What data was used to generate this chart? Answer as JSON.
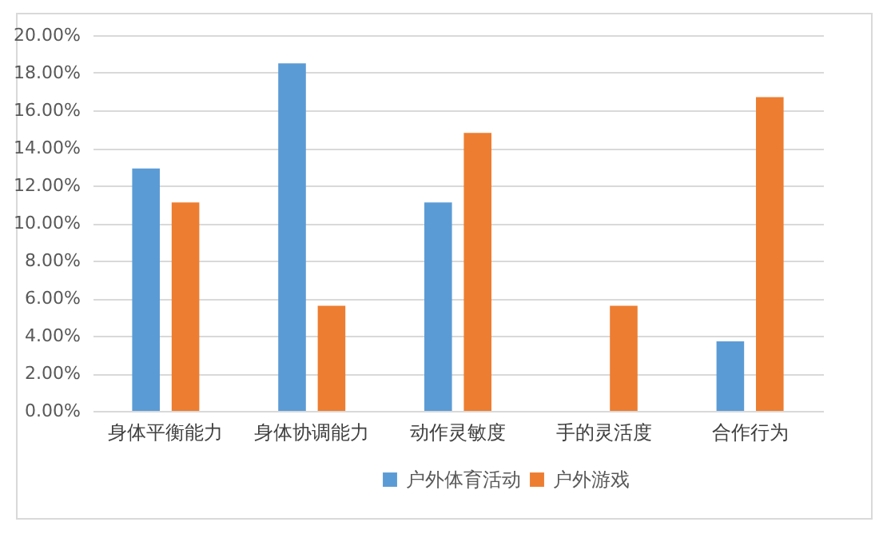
{
  "chart_data": {
    "type": "bar",
    "categories": [
      "身体平衡能力",
      "身体协调能力",
      "动作灵敏度",
      "手的灵活度",
      "合作行为"
    ],
    "series": [
      {
        "name": "户外体育活动",
        "color": "#5b9bd5",
        "values": [
          12.9,
          18.5,
          11.1,
          null,
          3.7
        ]
      },
      {
        "name": "户外游戏",
        "color": "#ed7d31",
        "values": [
          11.1,
          5.6,
          14.8,
          5.6,
          16.7
        ]
      }
    ],
    "ylim": [
      0,
      20
    ],
    "yticks": [
      {
        "value": 0,
        "label": "0.00%"
      },
      {
        "value": 2,
        "label": "2.00%"
      },
      {
        "value": 4,
        "label": "4.00%"
      },
      {
        "value": 6,
        "label": "6.00%"
      },
      {
        "value": 8,
        "label": "8.00%"
      },
      {
        "value": 10,
        "label": "10.00%"
      },
      {
        "value": 12,
        "label": "12.00%"
      },
      {
        "value": 14,
        "label": "14.00%"
      },
      {
        "value": 16,
        "label": "16.00%"
      },
      {
        "value": 18,
        "label": "18.00%"
      },
      {
        "value": 20,
        "label": "20.00%"
      }
    ],
    "grid": "y",
    "legend": "bottom"
  }
}
